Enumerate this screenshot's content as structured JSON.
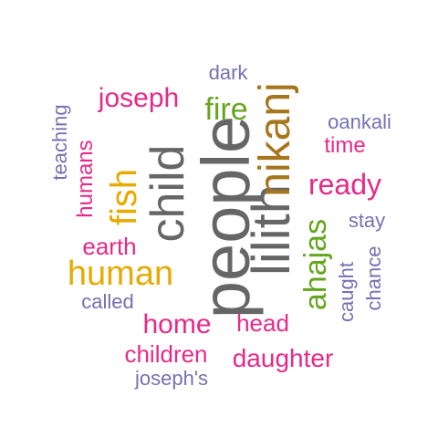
{
  "palette": {
    "gray": "#666666",
    "pink": "#e7298a",
    "purple": "#7570b3",
    "green": "#66a61e",
    "gold": "#e6ab02",
    "brown": "#a6761d",
    "background": "#ffffff"
  },
  "words": {
    "people": "people",
    "lilith": "lilith",
    "child": "child",
    "nikanj": "nikanj",
    "human": "human",
    "fish": "fish",
    "ahajas": "ahajas",
    "joseph": "joseph",
    "fire": "fire",
    "ready": "ready",
    "home": "home",
    "head": "head",
    "daughter": "daughter",
    "children": "children",
    "humans": "humans",
    "earth": "earth",
    "time": "time",
    "oankali": "oankali",
    "teaching": "teaching",
    "dark": "dark",
    "stay": "stay",
    "caught": "caught",
    "chance": "chance",
    "called": "called",
    "josephs": "joseph's"
  }
}
